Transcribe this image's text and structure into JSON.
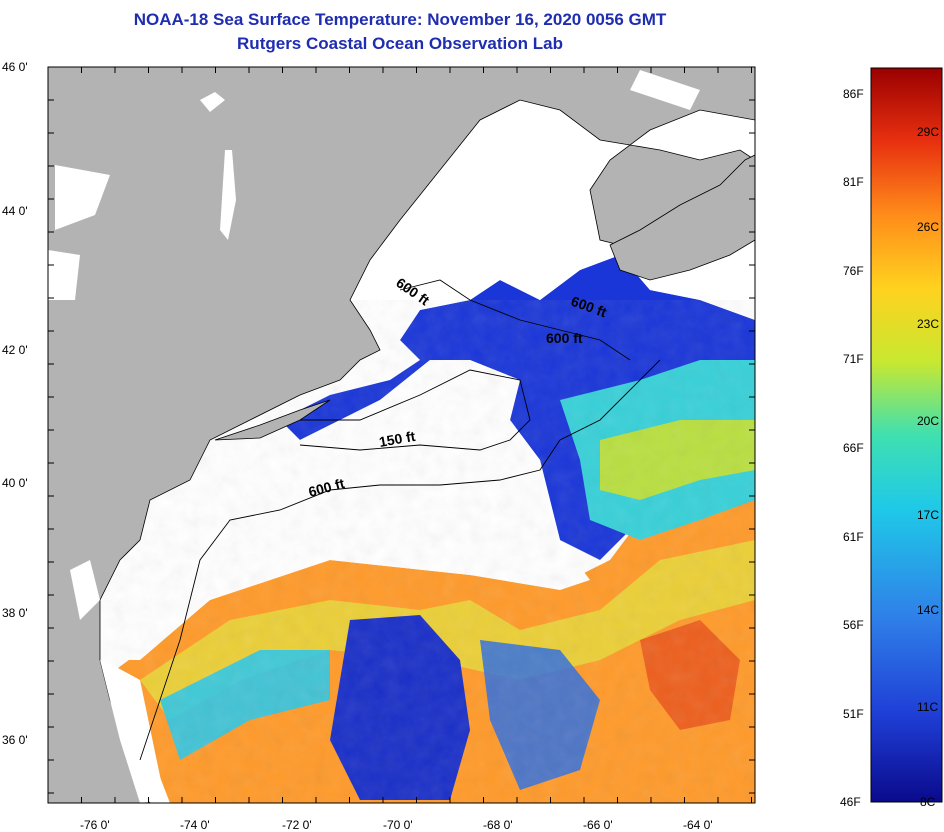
{
  "title": "NOAA-18 Sea Surface Temperature:  November 16, 2020 0056 GMT",
  "subtitle": "Rutgers Coastal Ocean Observation Lab",
  "lat_labels": [
    "46 0'",
    "44 0'",
    "42 0'",
    "40 0'",
    "38 0'",
    "36 0'"
  ],
  "lon_labels": [
    "-76 0'",
    "-74 0'",
    "-72 0'",
    "-70 0'",
    "-68 0'",
    "-66 0'",
    "-64 0'"
  ],
  "isobath_labels": [
    "600 ft",
    "600 ft",
    "600 ft",
    "150 ft",
    "600 ft"
  ],
  "colorbar": {
    "fahrenheit": [
      "86F",
      "81F",
      "76F",
      "71F",
      "66F",
      "61F",
      "56F",
      "51F",
      "46F"
    ],
    "celsius": [
      "29C",
      "26C",
      "23C",
      "20C",
      "17C",
      "14C",
      "11C",
      "8C"
    ]
  },
  "colors": {
    "title": "#1f2db0",
    "land": "#b3b3b3",
    "cloud": "#ffffff",
    "scale": [
      "#0a0a8c",
      "#1f3fd6",
      "#2f7fe8",
      "#1fc9e8",
      "#3fe0b0",
      "#c8e830",
      "#ffd21f",
      "#ff8c1a",
      "#e83010",
      "#9a0000"
    ]
  }
}
